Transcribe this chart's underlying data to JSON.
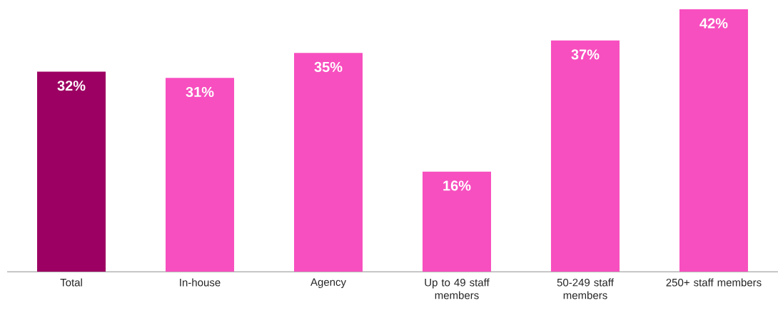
{
  "chart_data": {
    "type": "bar",
    "categories": [
      "Total",
      "In-house",
      "Agency",
      "Up to 49 staff members",
      "50-249 staff members",
      "250+ staff members"
    ],
    "values": [
      32,
      31,
      35,
      16,
      37,
      42
    ],
    "value_labels": [
      "32%",
      "31%",
      "35%",
      "16%",
      "37%",
      "42%"
    ],
    "colors": [
      "#9c0062",
      "#f74fbf",
      "#f74fbf",
      "#f74fbf",
      "#f74fbf",
      "#f74fbf"
    ]
  }
}
